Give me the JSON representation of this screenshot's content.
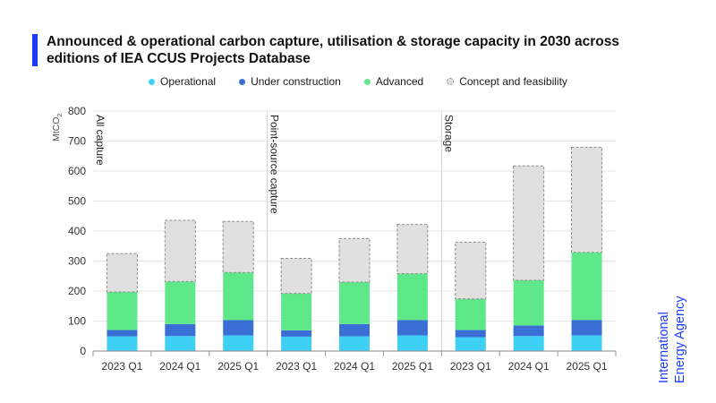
{
  "header": {
    "title": "Announced & operational carbon capture, utilisation & storage capacity in 2030 across editions of IEA CCUS Projects Database",
    "accent_color": "#1a3bff"
  },
  "logo": {
    "line1": "International",
    "line2": "Energy Agency",
    "color": "#1a3bff"
  },
  "chart_data": {
    "type": "bar",
    "stacked": true,
    "ylabel": "MtCO2",
    "ylim": [
      0,
      800
    ],
    "yticks": [
      0,
      100,
      200,
      300,
      400,
      500,
      600,
      700,
      800
    ],
    "categories": [
      "2023 Q1",
      "2024 Q1",
      "2025 Q1",
      "2023 Q1",
      "2024 Q1",
      "2025 Q1",
      "2023 Q1",
      "2024 Q1",
      "2025 Q1"
    ],
    "groups": [
      {
        "label": "All capture",
        "start": 0,
        "end": 3
      },
      {
        "label": "Point-source capture",
        "start": 3,
        "end": 6
      },
      {
        "label": "Storage",
        "start": 6,
        "end": 9
      }
    ],
    "series": [
      {
        "name": "Operational",
        "color": "#3fd0f5",
        "values": [
          49,
          50,
          52,
          48,
          49,
          52,
          46,
          50,
          52
        ]
      },
      {
        "name": "Under construction",
        "color": "#3b6fd6",
        "values": [
          21,
          40,
          51,
          21,
          41,
          51,
          24,
          35,
          51
        ]
      },
      {
        "name": "Advanced",
        "color": "#5ee88a",
        "values": [
          127,
          142,
          159,
          123,
          140,
          155,
          104,
          151,
          226
        ]
      },
      {
        "name": "Concept and feasibility",
        "color": "#e0e0e0",
        "values": [
          128,
          204,
          170,
          117,
          145,
          164,
          189,
          381,
          350
        ]
      }
    ],
    "grid": true,
    "legend_position": "top-center"
  }
}
